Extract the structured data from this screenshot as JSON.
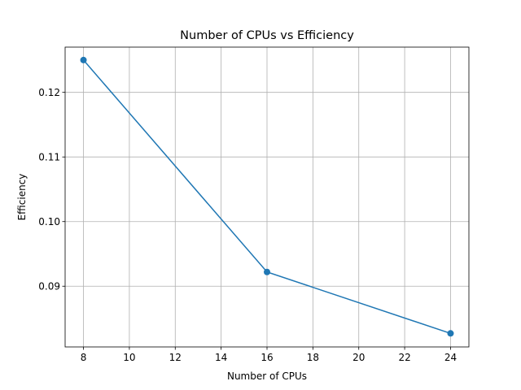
{
  "chart_data": {
    "type": "line",
    "title": "Number of CPUs vs Efficiency",
    "xlabel": "Number of CPUs",
    "ylabel": "Efficiency",
    "x": [
      8,
      16,
      24
    ],
    "series": [
      {
        "values": [
          0.125,
          0.0922,
          0.0827
        ],
        "color": "#1f77b4",
        "marker": "circle"
      }
    ],
    "xlim": [
      7.2,
      24.8
    ],
    "ylim": [
      0.0806,
      0.127
    ],
    "xticks": [
      8,
      10,
      12,
      14,
      16,
      18,
      20,
      22,
      24
    ],
    "yticks": [
      0.09,
      0.1,
      0.11,
      0.12
    ],
    "ytick_labels": [
      "0.09",
      "0.10",
      "0.11",
      "0.12"
    ],
    "grid": true,
    "legend": false
  }
}
